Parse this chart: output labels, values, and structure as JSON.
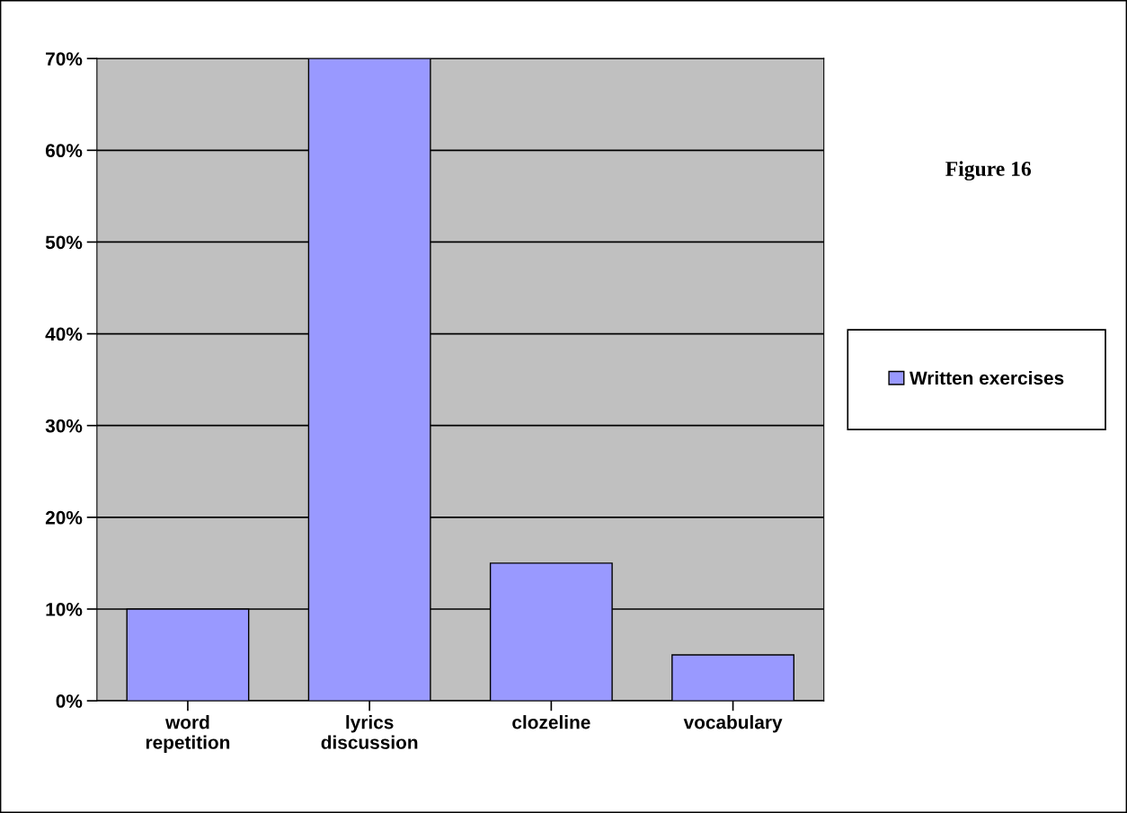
{
  "chart_data": {
    "type": "bar",
    "categories": [
      "word\nrepetition",
      "lyrics\ndiscussion",
      "clozeline",
      "vocabulary"
    ],
    "series": [
      {
        "name": "Written exercises",
        "color": "#9999ff",
        "values": [
          10,
          70,
          15,
          5
        ]
      }
    ],
    "ylim": [
      0,
      70
    ],
    "yticks": [
      {
        "value": 0,
        "label": "0%"
      },
      {
        "value": 10,
        "label": "10%"
      },
      {
        "value": 20,
        "label": "20%"
      },
      {
        "value": 30,
        "label": "30%"
      },
      {
        "value": 40,
        "label": "40%"
      },
      {
        "value": 50,
        "label": "50%"
      },
      {
        "value": 60,
        "label": "60%"
      },
      {
        "value": 70,
        "label": "70%"
      }
    ],
    "grid": "y",
    "legend": "right",
    "annotations": [
      "Figure 16"
    ]
  }
}
